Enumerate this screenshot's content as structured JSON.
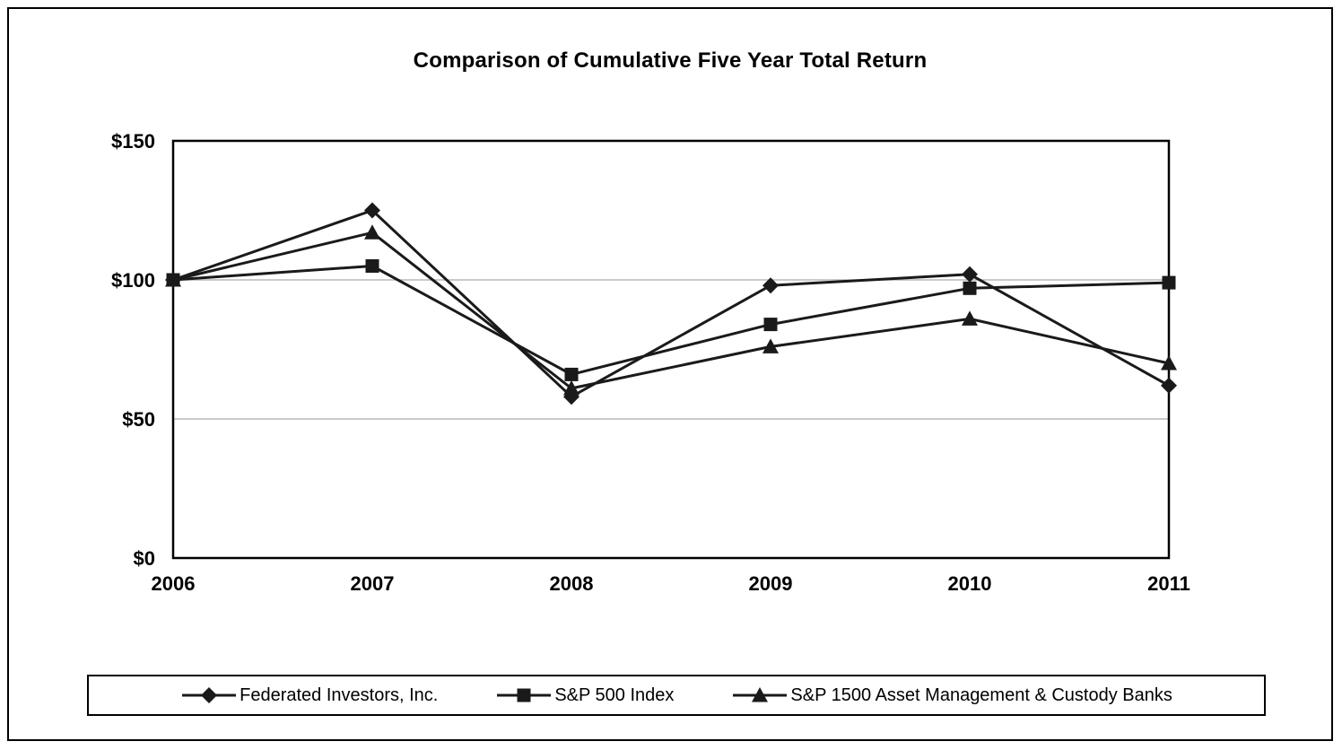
{
  "page": {
    "background_color": "#ffffff",
    "frame_border_color": "#000000"
  },
  "chart_data": {
    "type": "line",
    "title": "Comparison of Cumulative Five Year Total Return",
    "x": [
      2006,
      2007,
      2008,
      2009,
      2010,
      2011
    ],
    "xtick_labels": [
      "2006",
      "2007",
      "2008",
      "2009",
      "2010",
      "2011"
    ],
    "series": [
      {
        "name": "Federated Investors, Inc.",
        "marker": "diamond",
        "values": [
          100,
          125,
          58,
          98,
          102,
          62
        ]
      },
      {
        "name": "S&P 500 Index",
        "marker": "square",
        "values": [
          100,
          105,
          66,
          84,
          97,
          99
        ]
      },
      {
        "name": "S&P 1500 Asset Management & Custody Banks",
        "marker": "triangle",
        "values": [
          100,
          117,
          61,
          76,
          86,
          70
        ]
      }
    ],
    "ylim": [
      0,
      150
    ],
    "yticks": [
      0,
      50,
      100,
      150
    ],
    "ytick_labels": [
      "$0",
      "$50",
      "$100",
      "$150"
    ],
    "xlabel": "",
    "ylabel": "",
    "grid": true,
    "grid_color": "#b8b8b8",
    "line_color": "#1a1a1a",
    "legend_position": "bottom"
  }
}
